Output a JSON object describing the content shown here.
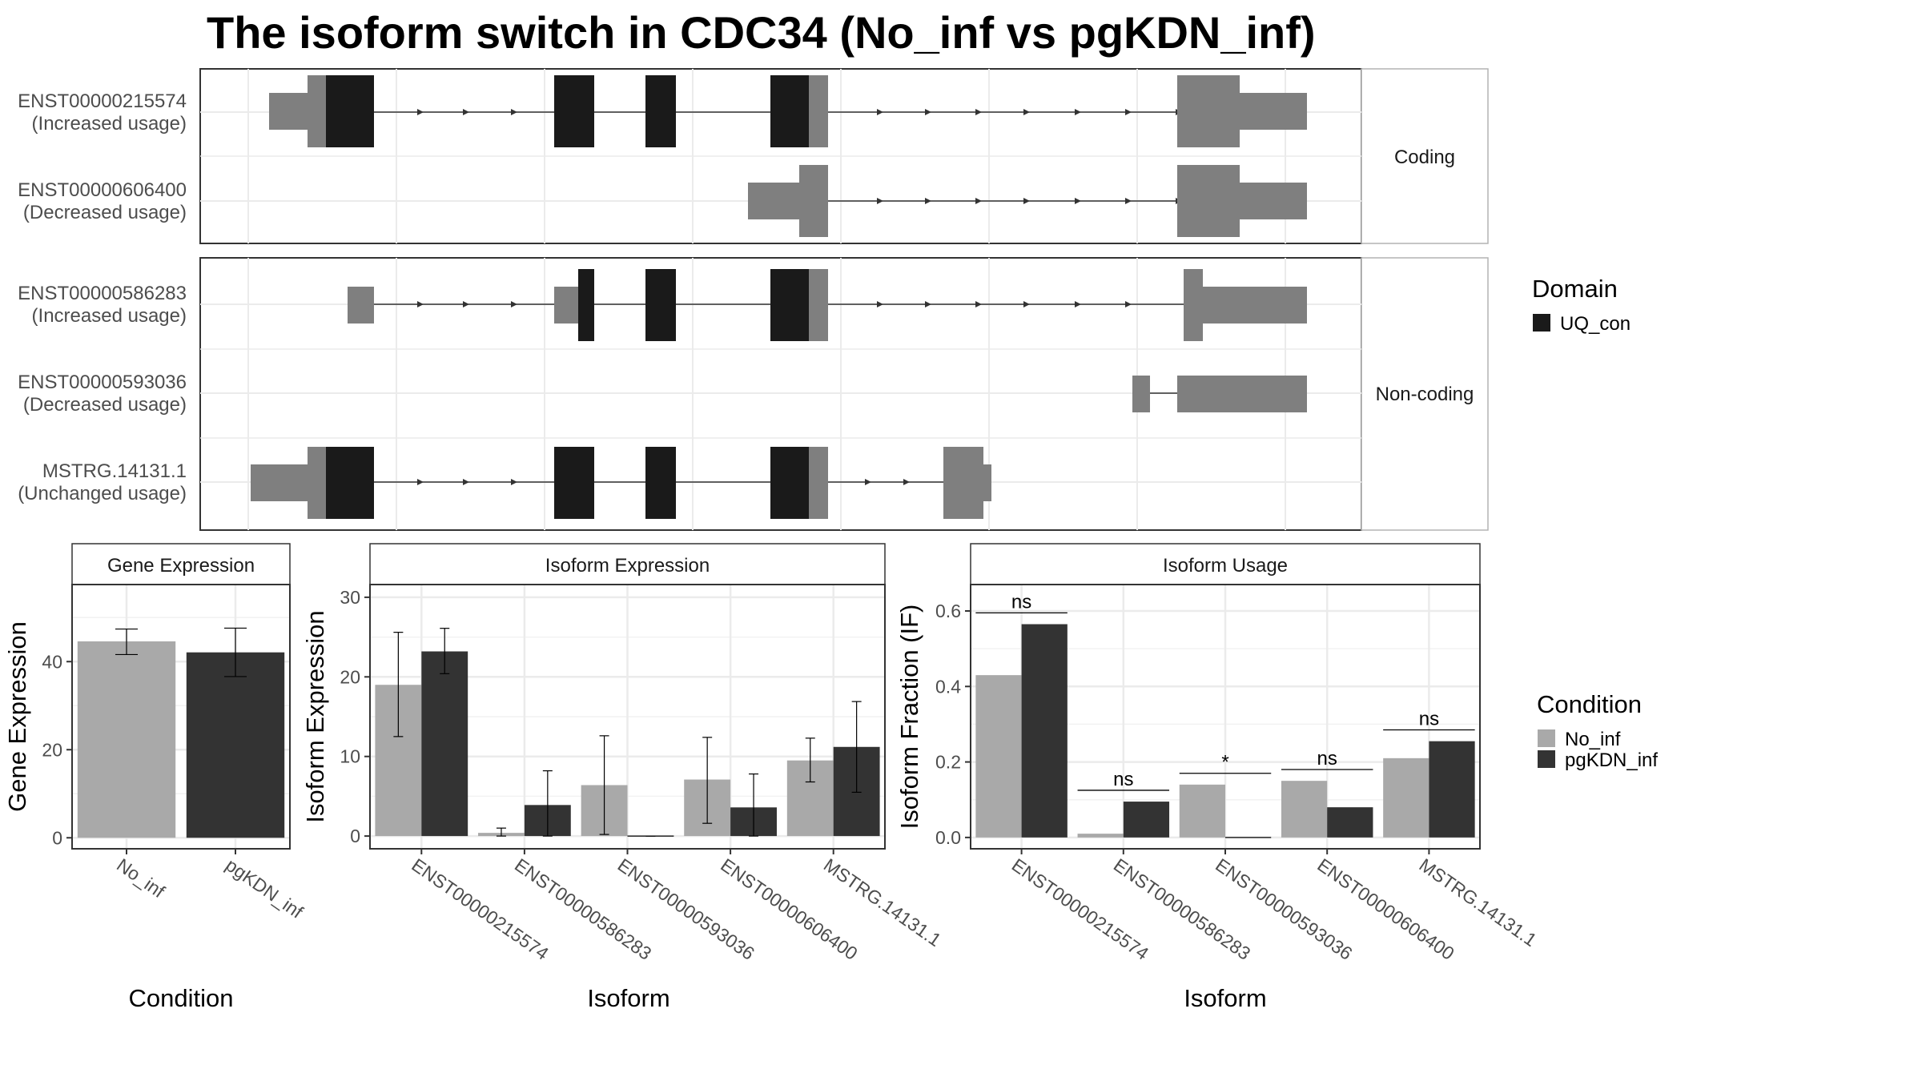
{
  "title": "The isoform switch in CDC34 (No_inf vs pgKDN_inf)",
  "colors": {
    "utr": "#7f7f7f",
    "domain": "#1a1a1a",
    "cond_a": "#a9a9a9",
    "cond_b": "#333333"
  },
  "transcript_panel": {
    "groups": [
      {
        "label": "Coding",
        "transcripts": [
          {
            "id": "ENST00000215574",
            "usage": "(Increased usage)"
          },
          {
            "id": "ENST00000606400",
            "usage": "(Decreased usage)"
          }
        ]
      },
      {
        "label": "Non-coding",
        "transcripts": [
          {
            "id": "ENST00000586283",
            "usage": "(Increased usage)"
          },
          {
            "id": "ENST00000593036",
            "usage": "(Decreased usage)"
          },
          {
            "id": "MSTRG.14131.1",
            "usage": "(Unchanged usage)"
          }
        ]
      }
    ]
  },
  "legend_domain": {
    "title": "Domain",
    "items": [
      "UQ_con"
    ]
  },
  "legend_condition": {
    "title": "Condition",
    "items": [
      "No_inf",
      "pgKDN_inf"
    ]
  },
  "chart_data": [
    {
      "type": "bar",
      "strip": "Gene Expression",
      "categories": [
        "No_inf",
        "pgKDN_inf"
      ],
      "values": [
        44.6,
        42.1
      ],
      "error_low": [
        41.6,
        36.6
      ],
      "error_high": [
        47.4,
        47.6
      ],
      "xlabel": "Condition",
      "ylabel": "Gene Expression",
      "ylim": [
        -2.5,
        57.5
      ],
      "yticks": [
        0,
        20,
        40
      ],
      "grid": true
    },
    {
      "type": "bar",
      "strip": "Isoform Expression",
      "categories": [
        "ENST00000215574",
        "ENST00000586283",
        "ENST00000593036",
        "ENST00000606400",
        "MSTRG.14131.1"
      ],
      "series": [
        {
          "name": "No_inf",
          "values": [
            19.0,
            0.4,
            6.4,
            7.1,
            9.5
          ],
          "error_low": [
            12.5,
            0.0,
            0.2,
            1.6,
            6.8
          ],
          "error_high": [
            25.6,
            1.0,
            12.6,
            12.4,
            12.3
          ]
        },
        {
          "name": "pgKDN_inf",
          "values": [
            23.2,
            3.9,
            0.0,
            3.6,
            11.2
          ],
          "error_low": [
            20.4,
            0.0,
            0.0,
            0.0,
            5.5
          ],
          "error_high": [
            26.1,
            8.2,
            0.0,
            7.8,
            16.9
          ]
        }
      ],
      "xlabel": "Isoform",
      "ylabel": "Isoform Expression",
      "ylim": [
        -1.6,
        31.6
      ],
      "yticks": [
        0,
        10,
        20,
        30
      ],
      "grid": true
    },
    {
      "type": "bar",
      "strip": "Isoform Usage",
      "categories": [
        "ENST00000215574",
        "ENST00000586283",
        "ENST00000593036",
        "ENST00000606400",
        "MSTRG.14131.1"
      ],
      "series": [
        {
          "name": "No_inf",
          "values": [
            0.43,
            0.01,
            0.14,
            0.15,
            0.21
          ]
        },
        {
          "name": "pgKDN_inf",
          "values": [
            0.565,
            0.095,
            0.0,
            0.08,
            0.255
          ]
        }
      ],
      "significance": [
        "ns",
        "ns",
        "*",
        "ns",
        "ns"
      ],
      "xlabel": "Isoform",
      "ylabel": "Isoform Fraction (IF)",
      "ylim": [
        -0.03,
        0.67
      ],
      "yticks": [
        0.0,
        0.2,
        0.4,
        0.6
      ],
      "grid": true
    }
  ]
}
